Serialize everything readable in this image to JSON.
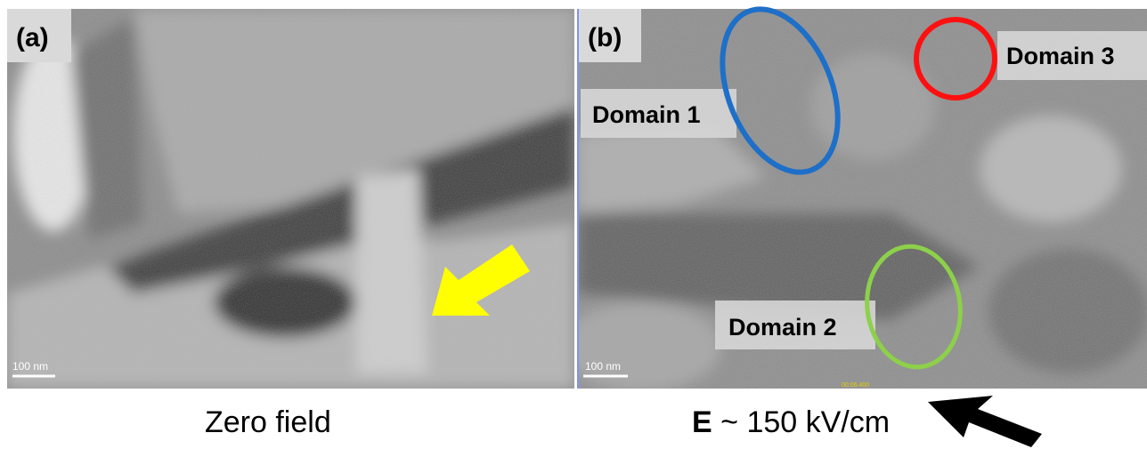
{
  "panels": [
    {
      "label": "(a)",
      "scale_bar": "100 nm"
    },
    {
      "label": "(b)",
      "scale_bar": "100 nm",
      "timestamp": "00:06.400",
      "domains": [
        "Domain 1",
        "Domain 2",
        "Domain 3"
      ]
    }
  ],
  "captions": [
    {
      "text": "Zero field"
    },
    {
      "symbol": "E",
      "text": "~ 150 kV/cm"
    }
  ]
}
